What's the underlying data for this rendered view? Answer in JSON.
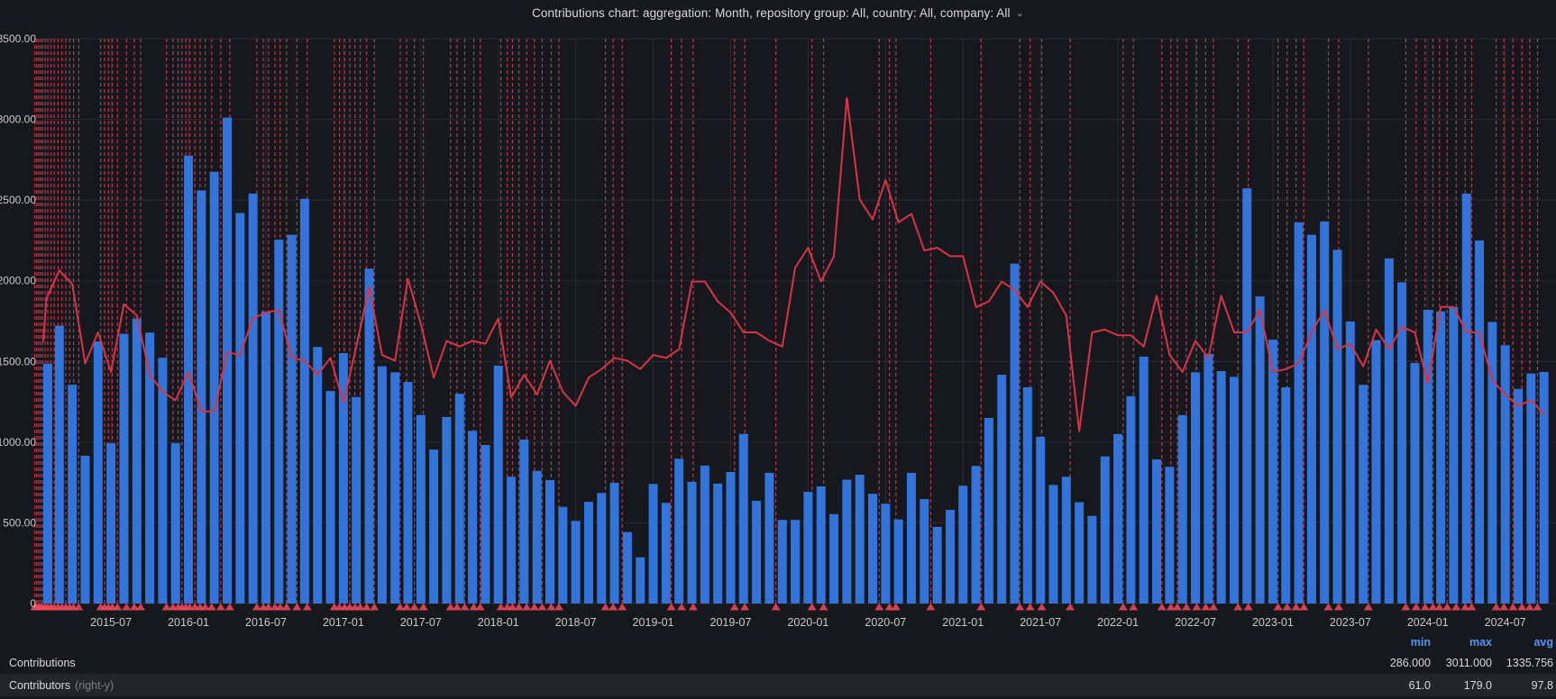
{
  "title": {
    "text": "Contributions chart: aggregation: Month, repository group: All, country: All, company: All",
    "chevron_icon": "chevron-down-icon"
  },
  "legend": {
    "headers": [
      "min",
      "max",
      "avg"
    ],
    "rows": [
      {
        "label": "Contributions",
        "suffix": "",
        "min": "286.000",
        "max": "3011.000",
        "avg": "1335.756"
      },
      {
        "label": "Contributors",
        "suffix": "(right-y)",
        "min": "61.0",
        "max": "179.0",
        "avg": "97.8"
      }
    ]
  },
  "chart_data": {
    "type": "bar+line",
    "title": "Contributions chart: aggregation: Month, repository group: All, country: All, company: All",
    "start_month": "2015-01",
    "months_count": 118,
    "ylim": [
      0,
      3500
    ],
    "grid": true,
    "y_ticks": [
      {
        "value": 3500,
        "label": "3500.00"
      },
      {
        "value": 3000,
        "label": "3000.00"
      },
      {
        "value": 2500,
        "label": "2500.00"
      },
      {
        "value": 2000,
        "label": "2000.00"
      },
      {
        "value": 1500,
        "label": "1500.00"
      },
      {
        "value": 1000,
        "label": "1000.00"
      },
      {
        "value": 500,
        "label": "500.00"
      },
      {
        "value": 0,
        "label": "0"
      }
    ],
    "x_ticks": [
      {
        "month_index": 6,
        "label": "2015-07"
      },
      {
        "month_index": 12,
        "label": "2016-01"
      },
      {
        "month_index": 18,
        "label": "2016-07"
      },
      {
        "month_index": 24,
        "label": "2017-01"
      },
      {
        "month_index": 30,
        "label": "2017-07"
      },
      {
        "month_index": 36,
        "label": "2018-01"
      },
      {
        "month_index": 42,
        "label": "2018-07"
      },
      {
        "month_index": 48,
        "label": "2019-01"
      },
      {
        "month_index": 54,
        "label": "2019-07"
      },
      {
        "month_index": 60,
        "label": "2020-01"
      },
      {
        "month_index": 66,
        "label": "2020-07"
      },
      {
        "month_index": 72,
        "label": "2021-01"
      },
      {
        "month_index": 78,
        "label": "2021-07"
      },
      {
        "month_index": 84,
        "label": "2022-01"
      },
      {
        "month_index": 90,
        "label": "2022-07"
      },
      {
        "month_index": 96,
        "label": "2023-01"
      },
      {
        "month_index": 102,
        "label": "2023-07"
      },
      {
        "month_index": 108,
        "label": "2024-01"
      },
      {
        "month_index": 114,
        "label": "2024-07"
      }
    ],
    "series": [
      {
        "name": "Contributions",
        "axis": "left",
        "render": "bars",
        "values": [
          null,
          1486,
          1722,
          1356,
          916,
          1624,
          993,
          1672,
          1765,
          1679,
          1523,
          993,
          2775,
          2560,
          2675,
          3011,
          2420,
          2540,
          1810,
          2255,
          2285,
          2508,
          1590,
          1317,
          1552,
          1280,
          2075,
          1470,
          1433,
          1373,
          1168,
          954,
          1156,
          1300,
          1070,
          982,
          1474,
          786,
          1016,
          822,
          765,
          599,
          512,
          630,
          685,
          748,
          443,
          286,
          741,
          624,
          897,
          754,
          855,
          743,
          815,
          1051,
          636,
          810,
          518,
          518,
          692,
          726,
          554,
          767,
          798,
          680,
          618,
          521,
          810,
          647,
          475,
          580,
          730,
          853,
          1150,
          1418,
          2106,
          1340,
          1033,
          735,
          786,
          628,
          543,
          912,
          1050,
          1285,
          1530,
          893,
          847,
          1168,
          1433,
          1548,
          1440,
          1405,
          2573,
          1903,
          1635,
          1340,
          2362,
          2285,
          2368,
          2192,
          1748,
          1355,
          1632,
          2139,
          1990,
          1490,
          1820,
          1810,
          1837,
          2540,
          2250,
          1745,
          1600,
          1330,
          1425,
          1435
        ]
      },
      {
        "name": "Contributors",
        "axis": "right",
        "render": "line",
        "right_axis_visual_scale": 17.5,
        "values": [
          93,
          108,
          118,
          113,
          85,
          96,
          82,
          106,
          102,
          81,
          75,
          72,
          82,
          68,
          68,
          89,
          88,
          101,
          103,
          104,
          87,
          86,
          81,
          87,
          71,
          91,
          112,
          88,
          86,
          115,
          99,
          80,
          93,
          91,
          93,
          92,
          101,
          73,
          81,
          74,
          86,
          75,
          70,
          80,
          83,
          87,
          86,
          83,
          88,
          87,
          90,
          114,
          114,
          107,
          103,
          96,
          96,
          93,
          91,
          119,
          126,
          114,
          123,
          179,
          143,
          136,
          150,
          135,
          138,
          125,
          126,
          123,
          123,
          105,
          107,
          114,
          111,
          105,
          114,
          110,
          102,
          61,
          96,
          97,
          95,
          95,
          91,
          109,
          88,
          82,
          93,
          87,
          109,
          96,
          96,
          104,
          82,
          83,
          85,
          96,
          104,
          90,
          92,
          84,
          97,
          90,
          98,
          96,
          78,
          105,
          105,
          96,
          96,
          79,
          74,
          70,
          72,
          67
        ]
      }
    ],
    "annotations_month_positions": [
      0.1,
      0.25,
      0.4,
      0.55,
      0.7,
      0.9,
      1.1,
      1.35,
      1.6,
      1.9,
      2.2,
      2.5,
      2.8,
      3.1,
      3.5,
      5.2,
      5.5,
      5.8,
      6.1,
      6.5,
      7.2,
      7.8,
      8.3,
      10.3,
      10.8,
      11.2,
      11.5,
      11.8,
      12.1,
      12.5,
      12.9,
      13.3,
      13.8,
      14.5,
      15.2,
      17.3,
      17.8,
      18.2,
      18.7,
      19.1,
      19.6,
      20.4,
      21.2,
      23.3,
      23.7,
      24.1,
      24.5,
      24.9,
      25.3,
      25.8,
      26.4,
      28.4,
      28.9,
      29.5,
      30.2,
      32.3,
      32.8,
      33.4,
      34.1,
      34.6,
      36.2,
      36.7,
      37.1,
      37.6,
      38.2,
      38.8,
      39.4,
      40.1,
      40.7,
      44.3,
      44.9,
      45.6,
      49.4,
      50.2,
      51.1,
      54.3,
      55.1,
      57.5,
      60.3,
      61.2,
      65.5,
      66.3,
      66.8,
      69.5,
      73.4,
      76.4,
      77.2,
      78.1,
      80.3,
      84.4,
      85.2,
      87.4,
      88.1,
      88.6,
      89.3,
      90.1,
      90.8,
      91.4,
      93.3,
      94.1,
      96.4,
      97.1,
      97.8,
      98.4,
      100.3,
      101.1,
      103.4,
      106.3,
      107.1,
      107.8,
      108.4,
      108.9,
      109.5,
      110.2,
      110.9,
      111.4,
      113.3,
      113.9,
      114.6,
      115.3,
      115.9,
      116.5
    ],
    "legend_position": "bottom",
    "colors": {
      "bar": "#3274d9",
      "line": "#d73445",
      "annotation_line": "rgba(242,73,92,0.72)",
      "annotation_marker": "rgba(242,73,92,0.85)",
      "grid": "rgba(210,220,240,0.10)",
      "axis_text": "#c8c9cb",
      "background": "#16181d",
      "stat_header": "#5794f2"
    }
  }
}
